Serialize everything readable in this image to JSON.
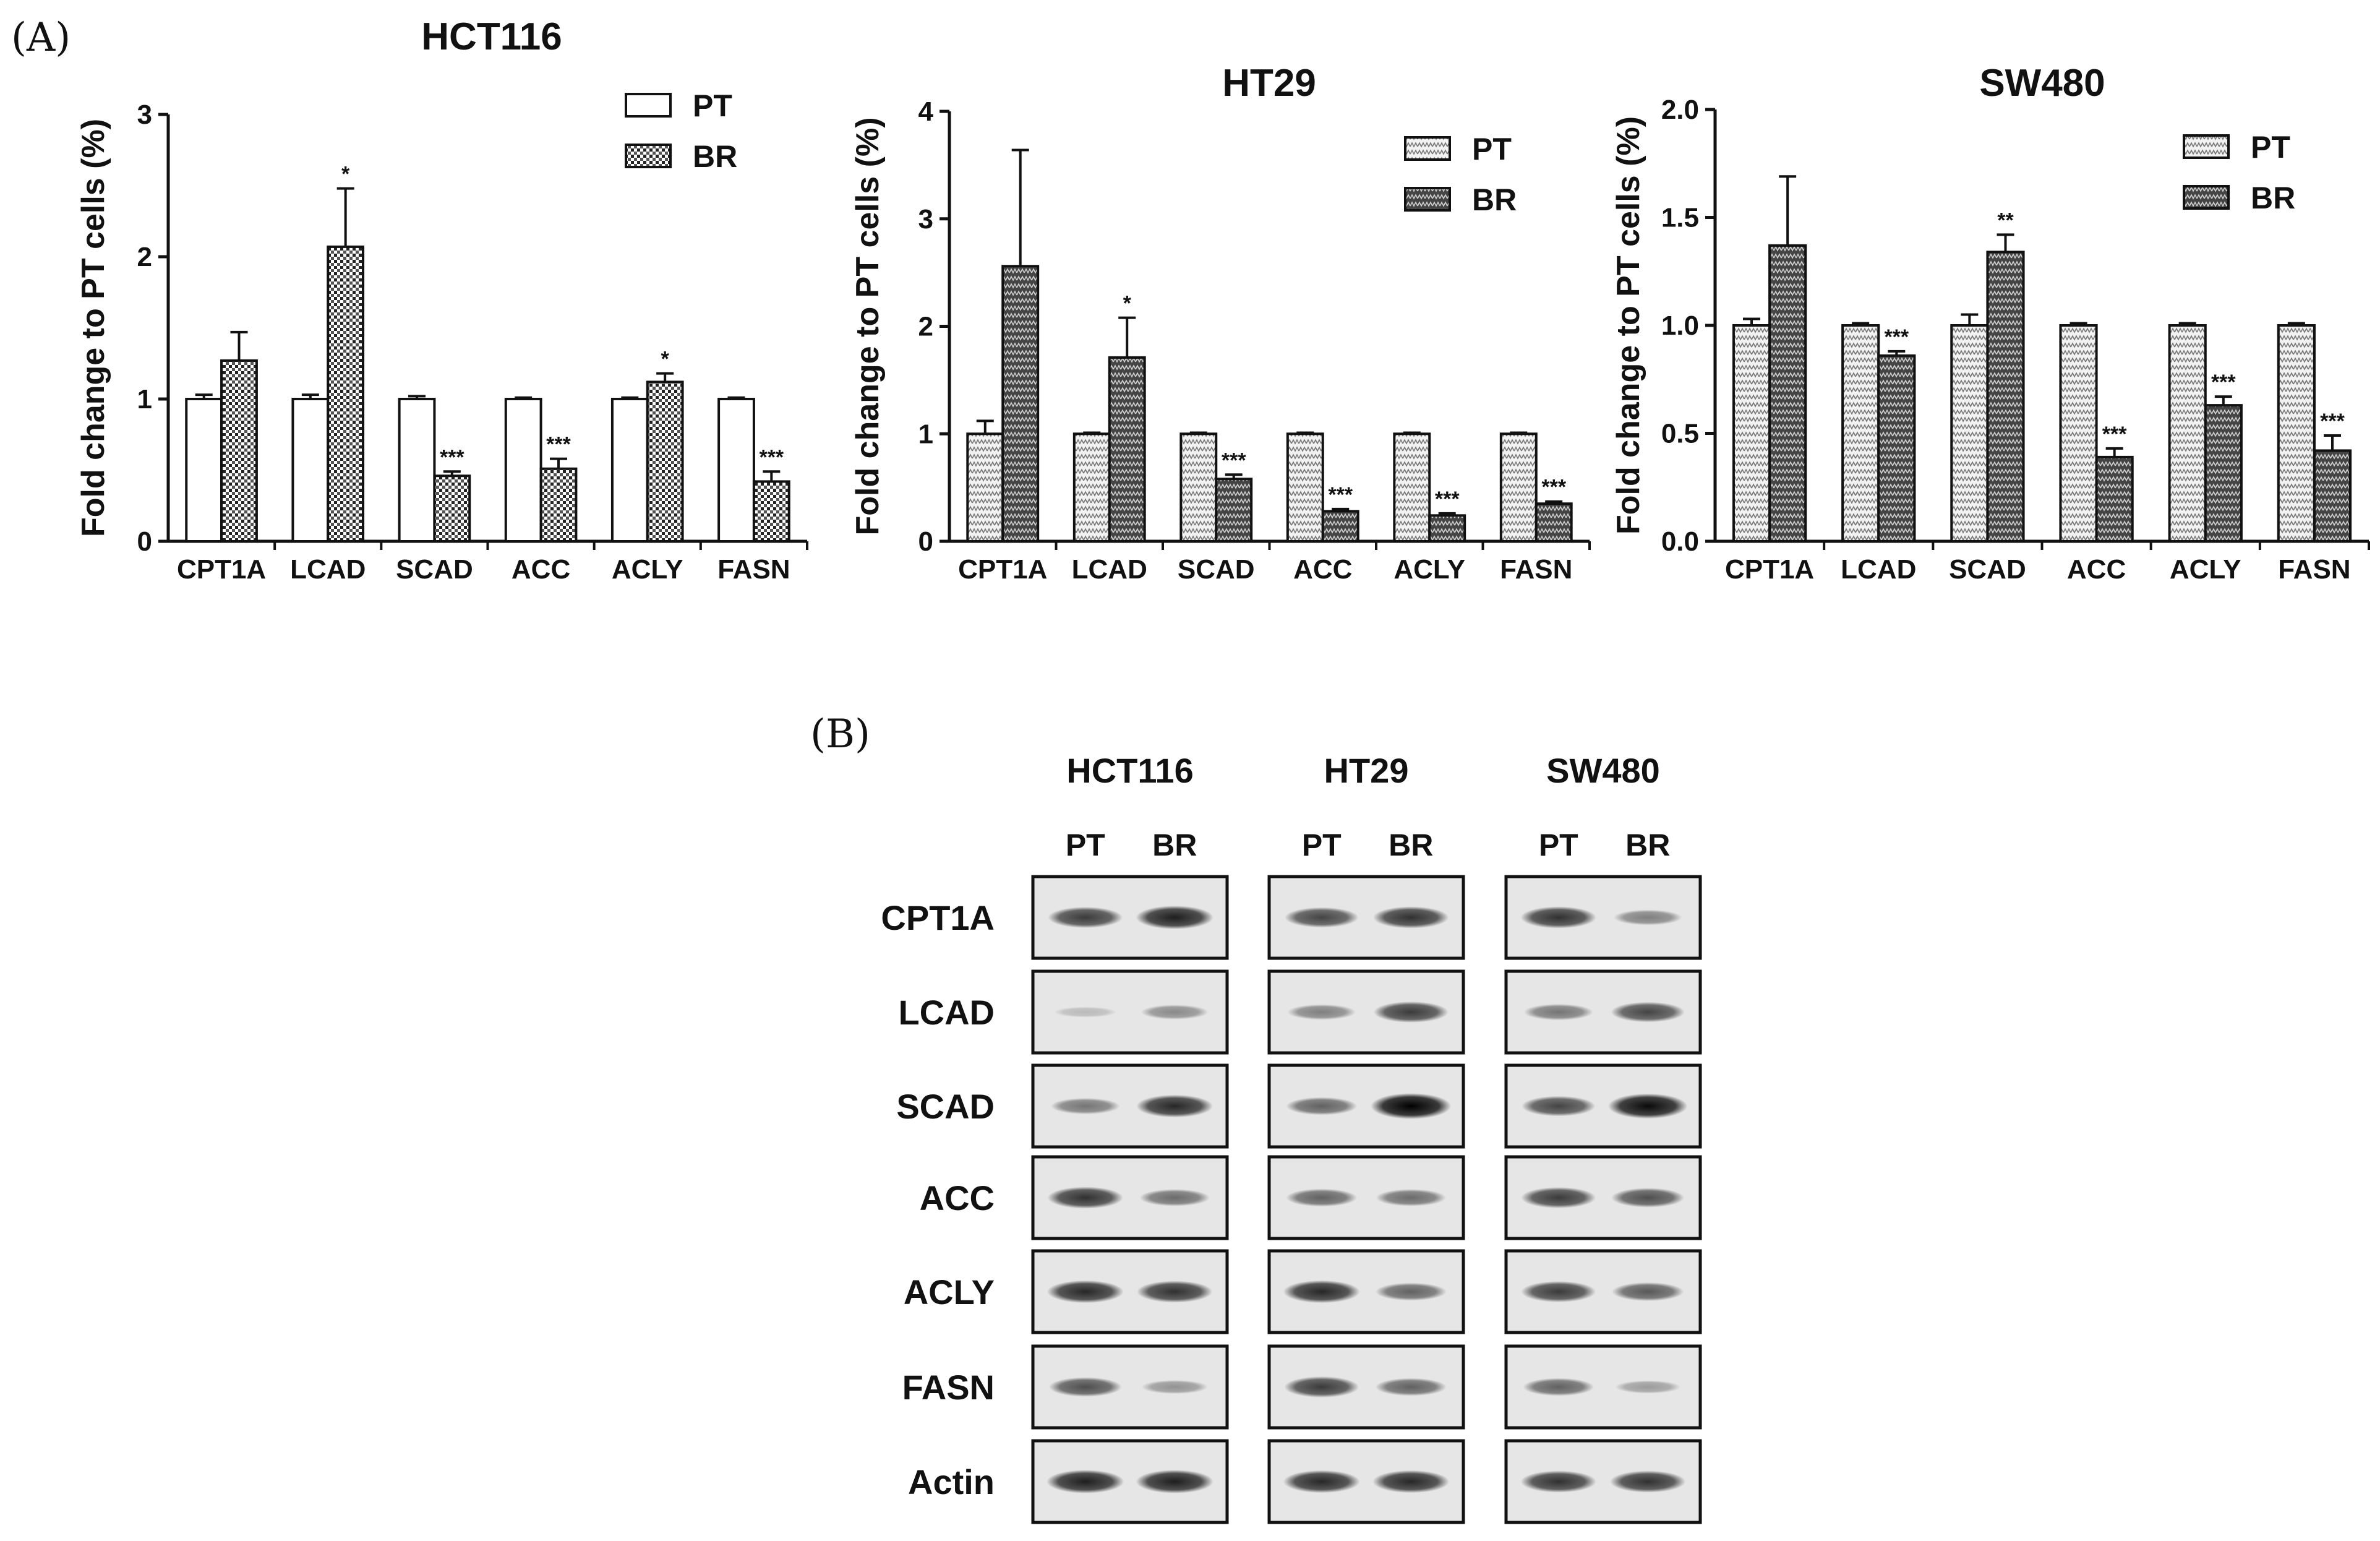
{
  "panel_a_label": "(A)",
  "panel_b_label": "(B)",
  "chart_data": [
    {
      "type": "bar",
      "title": "HCT116",
      "ylabel": "Fold change to PT cells (%)",
      "xlabel": "",
      "ylim": [
        0,
        3
      ],
      "yticks": [
        "0",
        "1",
        "2",
        "3"
      ],
      "categories": [
        "CPT1A",
        "LCAD",
        "SCAD",
        "ACC",
        "ACLY",
        "FASN"
      ],
      "legend_position": "top-right",
      "series": [
        {
          "name": "PT",
          "values": [
            1.0,
            1.0,
            1.0,
            1.0,
            1.0,
            1.0
          ],
          "errors": [
            0.03,
            0.03,
            0.02,
            0.01,
            0.01,
            0.01
          ],
          "pattern": "white"
        },
        {
          "name": "BR",
          "values": [
            1.27,
            2.07,
            0.46,
            0.51,
            1.12,
            0.42
          ],
          "errors": [
            0.2,
            0.41,
            0.03,
            0.07,
            0.06,
            0.07
          ],
          "pattern": "grid"
        }
      ],
      "significance": [
        "",
        "*",
        "***",
        "***",
        "*",
        "***"
      ]
    },
    {
      "type": "bar",
      "title": "HT29",
      "ylabel": "Fold change to PT cells (%)",
      "xlabel": "",
      "ylim": [
        0,
        4
      ],
      "yticks": [
        "0",
        "1",
        "2",
        "3",
        "4"
      ],
      "categories": [
        "CPT1A",
        "LCAD",
        "SCAD",
        "ACC",
        "ACLY",
        "FASN"
      ],
      "legend_position": "top-right",
      "series": [
        {
          "name": "PT",
          "values": [
            1.0,
            1.0,
            1.0,
            1.0,
            1.0,
            1.0
          ],
          "errors": [
            0.12,
            0.01,
            0.01,
            0.01,
            0.01,
            0.01
          ],
          "pattern": "dots"
        },
        {
          "name": "BR",
          "values": [
            2.56,
            1.71,
            0.58,
            0.28,
            0.24,
            0.35
          ],
          "errors": [
            1.08,
            0.37,
            0.04,
            0.02,
            0.02,
            0.02
          ],
          "pattern": "hatch"
        }
      ],
      "significance": [
        "",
        "*",
        "***",
        "***",
        "***",
        "***"
      ]
    },
    {
      "type": "bar",
      "title": "SW480",
      "ylabel": "Fold change to PT cells (%)",
      "xlabel": "",
      "ylim": [
        0,
        2.0
      ],
      "yticks": [
        "0.0",
        "0.5",
        "1.0",
        "1.5",
        "2.0"
      ],
      "categories": [
        "CPT1A",
        "LCAD",
        "SCAD",
        "ACC",
        "ACLY",
        "FASN"
      ],
      "legend_position": "top-right",
      "series": [
        {
          "name": "PT",
          "values": [
            1.0,
            1.0,
            1.0,
            1.0,
            1.0,
            1.0
          ],
          "errors": [
            0.03,
            0.01,
            0.05,
            0.01,
            0.01,
            0.01
          ],
          "pattern": "dots"
        },
        {
          "name": "BR",
          "values": [
            1.37,
            0.86,
            1.34,
            0.39,
            0.63,
            0.42
          ],
          "errors": [
            0.32,
            0.02,
            0.08,
            0.04,
            0.04,
            0.07
          ],
          "pattern": "hatch"
        }
      ],
      "significance": [
        "",
        "***",
        "**",
        "***",
        "***",
        "***"
      ]
    }
  ],
  "western_blot": {
    "cell_lines": [
      "HCT116",
      "HT29",
      "SW480"
    ],
    "lanes": [
      "PT",
      "BR"
    ],
    "proteins": [
      "CPT1A",
      "LCAD",
      "SCAD",
      "ACC",
      "ACLY",
      "FASN",
      "Actin"
    ],
    "band_intensity": {
      "CPT1A": [
        [
          0.7,
          0.85
        ],
        [
          0.65,
          0.75
        ],
        [
          0.75,
          0.35
        ]
      ],
      "LCAD": [
        [
          0.05,
          0.3
        ],
        [
          0.35,
          0.7
        ],
        [
          0.4,
          0.65
        ]
      ],
      "SCAD": [
        [
          0.4,
          0.8
        ],
        [
          0.5,
          1.0
        ],
        [
          0.65,
          0.95
        ]
      ],
      "ACC": [
        [
          0.75,
          0.45
        ],
        [
          0.5,
          0.45
        ],
        [
          0.7,
          0.6
        ]
      ],
      "ACLY": [
        [
          0.8,
          0.75
        ],
        [
          0.8,
          0.5
        ],
        [
          0.7,
          0.55
        ]
      ],
      "FASN": [
        [
          0.6,
          0.25
        ],
        [
          0.7,
          0.5
        ],
        [
          0.5,
          0.2
        ]
      ],
      "Actin": [
        [
          0.85,
          0.85
        ],
        [
          0.8,
          0.8
        ],
        [
          0.75,
          0.75
        ]
      ]
    }
  }
}
